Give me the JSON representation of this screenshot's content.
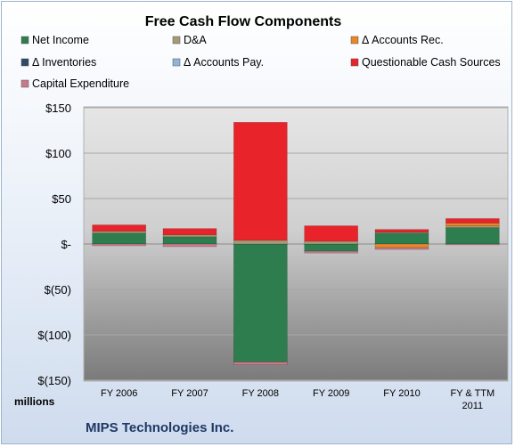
{
  "chart_data": {
    "type": "bar",
    "stacked": true,
    "title": "Free Cash Flow Components",
    "ylabel": "millions",
    "footer": "MIPS Technologies Inc.",
    "categories": [
      "FY 2006",
      "FY 2007",
      "FY 2008",
      "FY 2009",
      "FY 2010",
      "FY & TTM 2011"
    ],
    "ylim": [
      -150,
      150
    ],
    "yticks": [
      150,
      100,
      50,
      0,
      -50,
      -100,
      -150
    ],
    "ytick_labels": [
      "$150",
      "$100",
      "$50",
      "$-",
      "$(50)",
      "$(100)",
      "$(150)"
    ],
    "grid": true,
    "legend_position": "top",
    "series": [
      {
        "name": "Net Income",
        "color": "#2e7d4f",
        "values": [
          12,
          8,
          -130,
          -8,
          12,
          18
        ]
      },
      {
        "name": "D&A",
        "color": "#a89a78",
        "values": [
          2,
          2,
          4,
          3,
          1,
          2
        ]
      },
      {
        "name": "Δ Accounts Rec.",
        "color": "#e8862a",
        "values": [
          0,
          0,
          0,
          0,
          -4,
          3
        ]
      },
      {
        "name": "Δ Inventories",
        "color": "#2f4a66",
        "values": [
          0,
          0,
          0,
          0,
          0,
          0
        ]
      },
      {
        "name": "Δ Accounts Pay.",
        "color": "#8fb3d9",
        "values": [
          0,
          0,
          0,
          0,
          0,
          0
        ]
      },
      {
        "name": "Questionable Cash Sources",
        "color": "#e8232a",
        "values": [
          7,
          7,
          130,
          17,
          3,
          5
        ]
      },
      {
        "name": "Capital Expenditure",
        "color": "#c87a8a",
        "values": [
          -2,
          -3,
          -3,
          -2,
          -2,
          -1
        ]
      }
    ]
  }
}
